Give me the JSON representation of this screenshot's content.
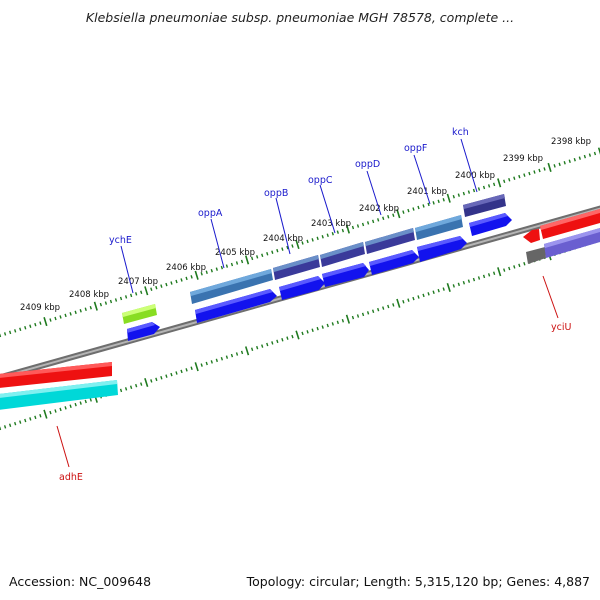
{
  "title": "Klebsiella pneumoniae subsp. pneumoniae MGH 78578, complete ...",
  "footer": {
    "accession": "Accession: NC_009648",
    "summary": "Topology: circular; Length: 5,315,120 bp; Genes: 4,887"
  },
  "scale_labels": [
    "2409 kbp",
    "2408 kbp",
    "2407 kbp",
    "2406 kbp",
    "2405 kbp",
    "2404 kbp",
    "2403 kbp",
    "2402 kbp",
    "2401 kbp",
    "2400 kbp",
    "2399 kbp",
    "2398 kbp"
  ],
  "gene_labels": {
    "ychE": "ychE",
    "oppA": "oppA",
    "oppB": "oppB",
    "oppC": "oppC",
    "oppD": "oppD",
    "oppF": "oppF",
    "kch": "kch",
    "adhE": "adhE",
    "yciU": "yciU"
  },
  "colors": {
    "forward_label": "#1a1acc",
    "reverse_label": "#cc1111",
    "tick": "#1f7a1f",
    "backbone": "#8c8c8c"
  }
}
